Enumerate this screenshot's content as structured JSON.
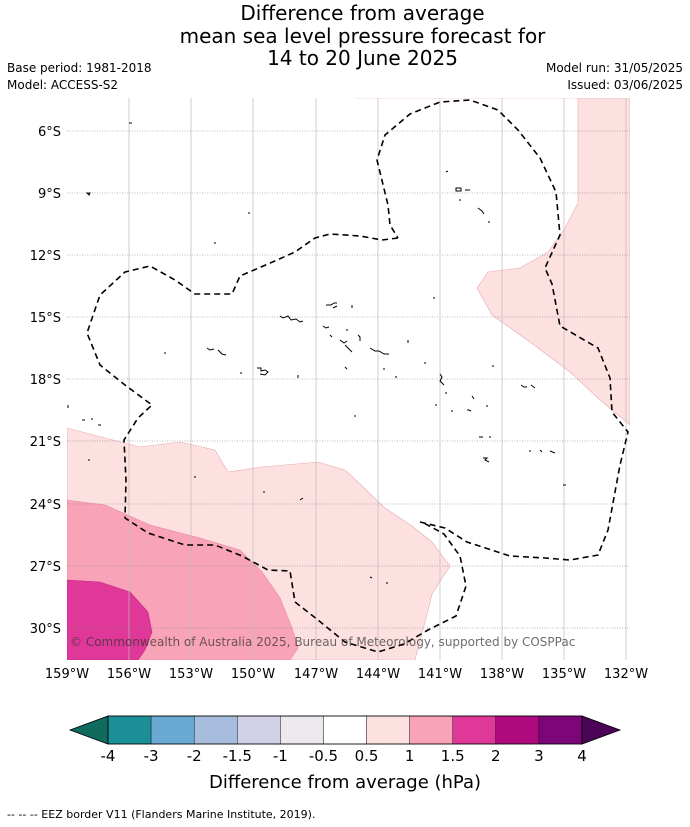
{
  "title": {
    "line1": "Difference from average",
    "line2": "mean sea level pressure forecast for",
    "line3": "14 to 20 June 2025"
  },
  "meta": {
    "base_period": "Base period: 1981-2018",
    "model": "Model: ACCESS-S2",
    "model_run": "Model run: 31/05/2025",
    "issued": "Issued: 03/06/2025"
  },
  "map": {
    "lat_labels": [
      "6°S",
      "9°S",
      "12°S",
      "15°S",
      "18°S",
      "21°S",
      "24°S",
      "27°S",
      "30°S"
    ],
    "lon_labels": [
      "159°W",
      "156°W",
      "153°W",
      "150°W",
      "147°W",
      "144°W",
      "141°W",
      "138°W",
      "135°W",
      "132°W"
    ],
    "copyright": "© Commonwealth of Australia 2025, Bureau of Meteorology, supported by COSPPac"
  },
  "colorbar": {
    "ticks": [
      "-4",
      "-3",
      "-2",
      "-1.5",
      "-1",
      "-0.5",
      "0.5",
      "1",
      "1.5",
      "2",
      "3",
      "4"
    ],
    "colors": [
      "#1b8f98",
      "#6aaad2",
      "#a7bddd",
      "#d1d2e8",
      "#ebe9ee",
      "#ffffff",
      "#fde0e0",
      "#f9a3b8",
      "#df3898",
      "#b0087d",
      "#7c0579"
    ],
    "under_color": "#0e6b5e",
    "over_color": "#4c0556",
    "label": "Difference from average (hPa)"
  },
  "footer": "--  --  -- EEZ border V11 (Flanders Marine Institute, 2019)."
}
